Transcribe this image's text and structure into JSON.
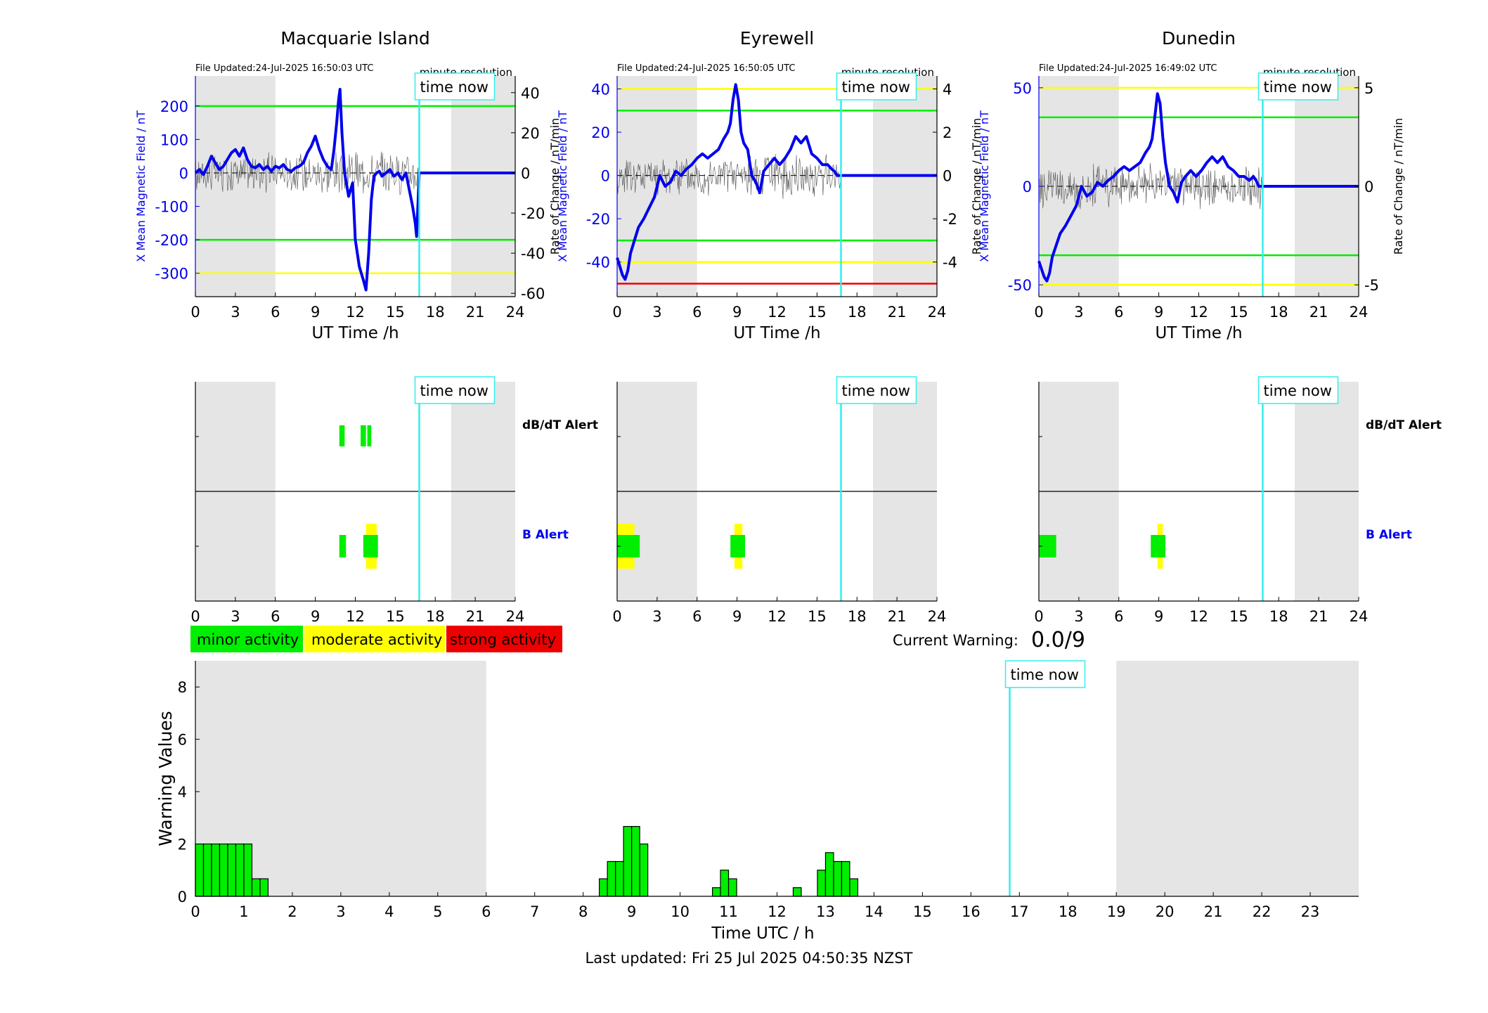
{
  "colors": {
    "blue": "#0000ee",
    "green": "#00ee00",
    "yellow": "#ffff00",
    "red": "#ee0000",
    "cyan": "#33eeee",
    "night": "#e5e5e5",
    "trace": "#555555"
  },
  "common": {
    "xlabel": "UT Time /h",
    "ylabel_left": "X Mean Magnetic Field / nT",
    "ylabel_right": "Rate of Change / nT/min",
    "resolution": "minute resolution",
    "time_now": "time now",
    "db_alert": "dB/dT Alert",
    "b_alert": "B Alert",
    "x_ticks": [
      "0",
      "3",
      "6",
      "9",
      "12",
      "15",
      "18",
      "21",
      "24"
    ]
  },
  "chart_data": [
    {
      "type": "line",
      "title": "Macquarie Island",
      "file_updated": "File Updated:24-Jul-2025 16:50:03 UTC",
      "xlim": [
        0,
        24
      ],
      "ylim": [
        -370,
        290
      ],
      "yticks": [
        200,
        100,
        0,
        -100,
        -200,
        -300
      ],
      "ytick_labels": [
        "200",
        "100",
        "0",
        "-100",
        "-200",
        "-300"
      ],
      "y2lim": [
        -61.67,
        48.33
      ],
      "y2ticks": [
        40,
        20,
        0,
        -20,
        -40,
        -60
      ],
      "y2tick_labels": [
        "40",
        "20",
        "0",
        "-20",
        "-40",
        "-60"
      ],
      "green_levels": [
        200,
        -200
      ],
      "yellow_levels": [
        -300
      ],
      "red_levels": [],
      "night": [
        [
          0,
          6
        ],
        [
          19.2,
          24
        ]
      ],
      "time_now": 16.8,
      "series": [
        {
          "x": [
            0,
            0.3,
            0.6,
            0.9,
            1.2,
            1.5,
            1.8,
            2.1,
            2.4,
            2.7,
            3.0,
            3.3,
            3.6,
            3.9,
            4.2,
            4.5,
            4.8,
            5.1,
            5.4,
            5.7,
            6.0,
            6.3,
            6.6,
            6.9,
            7.2,
            7.5,
            7.8,
            8.1,
            8.4,
            8.7,
            9.0,
            9.3,
            9.6,
            9.9,
            10.2,
            10.4,
            10.6,
            10.75,
            10.85,
            11.0,
            11.2,
            11.5,
            11.8,
            12.0,
            12.3,
            12.6,
            12.8,
            13.0,
            13.2,
            13.4,
            13.6,
            13.8,
            14.0,
            14.3,
            14.6,
            14.9,
            15.2,
            15.5,
            15.8,
            16.1,
            16.3,
            16.5,
            16.6,
            16.8,
            17.5,
            24
          ],
          "y": [
            0,
            10,
            -5,
            20,
            50,
            30,
            10,
            20,
            40,
            60,
            70,
            50,
            75,
            40,
            20,
            15,
            25,
            10,
            20,
            5,
            20,
            15,
            25,
            10,
            5,
            15,
            20,
            30,
            60,
            80,
            110,
            70,
            40,
            20,
            10,
            70,
            150,
            220,
            250,
            120,
            0,
            -70,
            -30,
            -200,
            -280,
            -320,
            -350,
            -240,
            -80,
            -10,
            0,
            5,
            -10,
            0,
            10,
            -10,
            0,
            -20,
            0,
            -60,
            -100,
            -150,
            -190,
            0,
            0,
            0
          ]
        }
      ]
    },
    {
      "type": "line",
      "title": "Eyrewell",
      "file_updated": "File Updated:24-Jul-2025 16:50:05 UTC",
      "xlim": [
        0,
        24
      ],
      "ylim": [
        -56,
        46
      ],
      "yticks": [
        40,
        20,
        0,
        -20,
        -40
      ],
      "ytick_labels": [
        "40",
        "20",
        "0",
        "-20",
        "-40"
      ],
      "y2lim": [
        -5.6,
        4.6
      ],
      "y2ticks": [
        4,
        2,
        0,
        -2,
        -4
      ],
      "y2tick_labels": [
        "4",
        "2",
        "0",
        "-2",
        "-4"
      ],
      "green_levels": [
        30,
        -30
      ],
      "yellow_levels": [
        40,
        -40
      ],
      "red_levels": [
        -50
      ],
      "night": [
        [
          0,
          6
        ],
        [
          19.2,
          24
        ]
      ],
      "time_now": 16.8,
      "series": [
        {
          "x": [
            0,
            0.2,
            0.4,
            0.6,
            0.8,
            1.0,
            1.3,
            1.6,
            2.0,
            2.4,
            2.8,
            3.2,
            3.6,
            4.0,
            4.4,
            4.8,
            5.2,
            5.6,
            6.0,
            6.4,
            6.8,
            7.2,
            7.6,
            8.0,
            8.3,
            8.5,
            8.7,
            8.9,
            9.1,
            9.3,
            9.5,
            9.8,
            10.1,
            10.4,
            10.7,
            11.0,
            11.4,
            11.8,
            12.2,
            12.6,
            13.0,
            13.4,
            13.8,
            14.2,
            14.6,
            15.0,
            15.4,
            15.8,
            16.1,
            16.3,
            16.5,
            16.8,
            17.5,
            24
          ],
          "y": [
            -38,
            -42,
            -46,
            -48,
            -44,
            -36,
            -30,
            -24,
            -20,
            -15,
            -10,
            0,
            -5,
            -3,
            2,
            0,
            3,
            5,
            8,
            10,
            8,
            10,
            12,
            17,
            20,
            24,
            35,
            42,
            35,
            20,
            15,
            12,
            0,
            -3,
            -8,
            2,
            5,
            8,
            5,
            8,
            12,
            18,
            15,
            18,
            10,
            8,
            5,
            5,
            3,
            2,
            0,
            0,
            0,
            0
          ]
        }
      ]
    },
    {
      "type": "line",
      "title": "Dunedin",
      "file_updated": "File Updated:24-Jul-2025 16:49:02 UTC",
      "xlim": [
        0,
        24
      ],
      "ylim": [
        -56,
        56
      ],
      "yticks": [
        50,
        0,
        -50
      ],
      "ytick_labels": [
        "50",
        "0",
        "-50"
      ],
      "y2lim": [
        -5.6,
        5.6
      ],
      "y2ticks": [
        5,
        0,
        -5
      ],
      "y2tick_labels": [
        "5",
        "0",
        "-5"
      ],
      "green_levels": [
        35,
        -35
      ],
      "yellow_levels": [
        50,
        -50
      ],
      "red_levels": [],
      "night": [
        [
          0,
          6
        ],
        [
          19.2,
          24
        ]
      ],
      "time_now": 16.8,
      "series": [
        {
          "x": [
            0,
            0.2,
            0.4,
            0.6,
            0.8,
            1.0,
            1.3,
            1.6,
            2.0,
            2.4,
            2.8,
            3.2,
            3.6,
            4.0,
            4.4,
            4.8,
            5.2,
            5.6,
            6.0,
            6.4,
            6.8,
            7.2,
            7.6,
            8.0,
            8.3,
            8.5,
            8.7,
            8.9,
            9.1,
            9.3,
            9.5,
            9.8,
            10.1,
            10.4,
            10.7,
            11.0,
            11.4,
            11.8,
            12.2,
            12.6,
            13.0,
            13.4,
            13.8,
            14.2,
            14.6,
            15.0,
            15.4,
            15.8,
            16.1,
            16.3,
            16.5,
            16.8,
            17.5,
            24
          ],
          "y": [
            -38,
            -42,
            -46,
            -48,
            -44,
            -36,
            -30,
            -24,
            -20,
            -15,
            -10,
            0,
            -5,
            -3,
            2,
            0,
            3,
            5,
            8,
            10,
            8,
            10,
            12,
            17,
            20,
            24,
            35,
            47,
            42,
            25,
            12,
            0,
            -3,
            -8,
            2,
            5,
            8,
            5,
            8,
            12,
            15,
            12,
            15,
            10,
            8,
            5,
            5,
            3,
            5,
            3,
            0,
            0,
            0,
            0
          ]
        }
      ]
    },
    {
      "type": "bar",
      "title": "",
      "xlabel": "Time UTC / h",
      "ylabel": "Warning Values",
      "xlim": [
        0,
        24
      ],
      "ylim": [
        0,
        9
      ],
      "xticks": [
        "0",
        "1",
        "2",
        "3",
        "4",
        "5",
        "6",
        "7",
        "8",
        "9",
        "10",
        "11",
        "12",
        "13",
        "14",
        "15",
        "16",
        "17",
        "18",
        "19",
        "20",
        "21",
        "22",
        "23"
      ],
      "yticks": [
        "0",
        "2",
        "4",
        "6",
        "8"
      ],
      "night": [
        [
          0,
          6
        ],
        [
          19,
          24
        ]
      ],
      "time_now": 16.8,
      "bar_width_h": 0.1667,
      "bars": [
        {
          "x": 0.0,
          "v": 2
        },
        {
          "x": 0.167,
          "v": 2
        },
        {
          "x": 0.333,
          "v": 2
        },
        {
          "x": 0.5,
          "v": 2
        },
        {
          "x": 0.667,
          "v": 2
        },
        {
          "x": 0.833,
          "v": 2
        },
        {
          "x": 1.0,
          "v": 2
        },
        {
          "x": 1.167,
          "v": 0.67
        },
        {
          "x": 1.333,
          "v": 0.67
        },
        {
          "x": 8.333,
          "v": 0.67
        },
        {
          "x": 8.5,
          "v": 1.33
        },
        {
          "x": 8.667,
          "v": 1.33
        },
        {
          "x": 8.833,
          "v": 2.67
        },
        {
          "x": 9.0,
          "v": 2.67
        },
        {
          "x": 9.167,
          "v": 2
        },
        {
          "x": 10.667,
          "v": 0.33
        },
        {
          "x": 10.833,
          "v": 1
        },
        {
          "x": 11.0,
          "v": 0.67
        },
        {
          "x": 12.333,
          "v": 0.33
        },
        {
          "x": 12.833,
          "v": 1
        },
        {
          "x": 13.0,
          "v": 1.67
        },
        {
          "x": 13.167,
          "v": 1.33
        },
        {
          "x": 13.333,
          "v": 1.33
        },
        {
          "x": 13.5,
          "v": 0.67
        }
      ]
    }
  ],
  "alerts": [
    {
      "db": [
        {
          "x0": 10.8,
          "x1": 11.2,
          "lvl": "green"
        },
        {
          "x0": 12.4,
          "x1": 12.8,
          "lvl": "green"
        },
        {
          "x0": 12.9,
          "x1": 13.2,
          "lvl": "green"
        }
      ],
      "b": [
        {
          "x0": 10.8,
          "x1": 11.3,
          "lvl": "green"
        },
        {
          "x0": 12.8,
          "x1": 13.6,
          "lvl": "yellow"
        },
        {
          "x0": 12.6,
          "x1": 13.7,
          "lvl": "green"
        }
      ]
    },
    {
      "db": [],
      "b": [
        {
          "x0": 0.0,
          "x1": 1.3,
          "lvl": "yellow"
        },
        {
          "x0": 0.0,
          "x1": 1.7,
          "lvl": "green"
        },
        {
          "x0": 8.8,
          "x1": 9.4,
          "lvl": "yellow"
        },
        {
          "x0": 8.5,
          "x1": 9.6,
          "lvl": "green"
        }
      ]
    },
    {
      "db": [],
      "b": [
        {
          "x0": 0.0,
          "x1": 1.3,
          "lvl": "green"
        },
        {
          "x0": 8.9,
          "x1": 9.3,
          "lvl": "yellow"
        },
        {
          "x0": 8.4,
          "x1": 9.5,
          "lvl": "green"
        }
      ]
    }
  ],
  "legend": {
    "minor": "minor activity",
    "moderate": "moderate activity",
    "strong": "strong activity"
  },
  "warning": {
    "label": "Current Warning:",
    "value": "0.0/9"
  },
  "footer": "Last updated: Fri 25 Jul 2025 04:50:35 NZST"
}
